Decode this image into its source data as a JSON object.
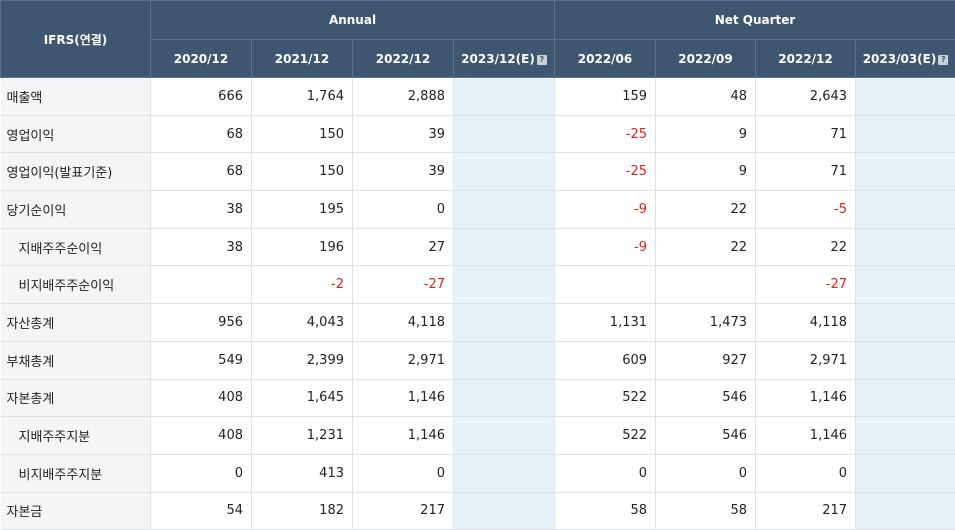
{
  "header": {
    "corner": "IFRS(연결)",
    "group_annual": "Annual",
    "group_quarter": "Net Quarter",
    "annual_periods": [
      "2020/12",
      "2021/12",
      "2022/12",
      "2023/12(E)"
    ],
    "quarter_periods": [
      "2022/06",
      "2022/09",
      "2022/12",
      "2023/03(E)"
    ],
    "help_icon_glyph": "?"
  },
  "colors": {
    "header_bg": "#3e5670",
    "label_bg": "#f4f5f7",
    "estimate_bg": "#e6f2f8",
    "negative_text": "#e0221b"
  },
  "rows": [
    {
      "label": "매출액",
      "indent": false,
      "annual": [
        "666",
        "1,764",
        "2,888",
        ""
      ],
      "quarter": [
        "159",
        "48",
        "2,643",
        ""
      ]
    },
    {
      "label": "영업이익",
      "indent": false,
      "annual": [
        "68",
        "150",
        "39",
        ""
      ],
      "quarter": [
        "-25",
        "9",
        "71",
        ""
      ]
    },
    {
      "label": "영업이익(발표기준)",
      "indent": false,
      "annual": [
        "68",
        "150",
        "39",
        ""
      ],
      "quarter": [
        "-25",
        "9",
        "71",
        ""
      ]
    },
    {
      "label": "당기순이익",
      "indent": false,
      "annual": [
        "38",
        "195",
        "0",
        ""
      ],
      "quarter": [
        "-9",
        "22",
        "-5",
        ""
      ]
    },
    {
      "label": "지배주주순이익",
      "indent": true,
      "annual": [
        "38",
        "196",
        "27",
        ""
      ],
      "quarter": [
        "-9",
        "22",
        "22",
        ""
      ]
    },
    {
      "label": "비지배주주순이익",
      "indent": true,
      "annual": [
        "",
        "-2",
        "-27",
        ""
      ],
      "quarter": [
        "",
        "",
        "-27",
        ""
      ]
    },
    {
      "label": "자산총계",
      "indent": false,
      "annual": [
        "956",
        "4,043",
        "4,118",
        ""
      ],
      "quarter": [
        "1,131",
        "1,473",
        "4,118",
        ""
      ]
    },
    {
      "label": "부채총계",
      "indent": false,
      "annual": [
        "549",
        "2,399",
        "2,971",
        ""
      ],
      "quarter": [
        "609",
        "927",
        "2,971",
        ""
      ]
    },
    {
      "label": "자본총계",
      "indent": false,
      "annual": [
        "408",
        "1,645",
        "1,146",
        ""
      ],
      "quarter": [
        "522",
        "546",
        "1,146",
        ""
      ]
    },
    {
      "label": "지배주주지분",
      "indent": true,
      "annual": [
        "408",
        "1,231",
        "1,146",
        ""
      ],
      "quarter": [
        "522",
        "546",
        "1,146",
        ""
      ]
    },
    {
      "label": "비지배주주지분",
      "indent": true,
      "annual": [
        "0",
        "413",
        "0",
        ""
      ],
      "quarter": [
        "0",
        "0",
        "0",
        ""
      ]
    },
    {
      "label": "자본금",
      "indent": false,
      "annual": [
        "54",
        "182",
        "217",
        ""
      ],
      "quarter": [
        "58",
        "58",
        "217",
        ""
      ]
    }
  ]
}
